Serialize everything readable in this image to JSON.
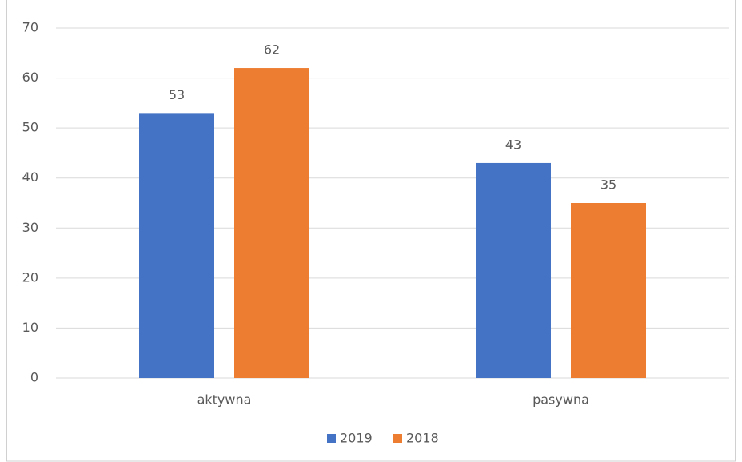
{
  "chart_data": {
    "type": "bar",
    "categories": [
      "aktywna",
      "pasywna"
    ],
    "series": [
      {
        "name": "2019",
        "color": "#4472c4",
        "values": [
          53,
          43
        ]
      },
      {
        "name": "2018",
        "color": "#ed7d31",
        "values": [
          62,
          35
        ]
      }
    ],
    "ylim": [
      0,
      70
    ],
    "yticks": [
      0,
      10,
      20,
      30,
      40,
      50,
      60,
      70
    ],
    "grid": true,
    "legend": "bottom"
  }
}
